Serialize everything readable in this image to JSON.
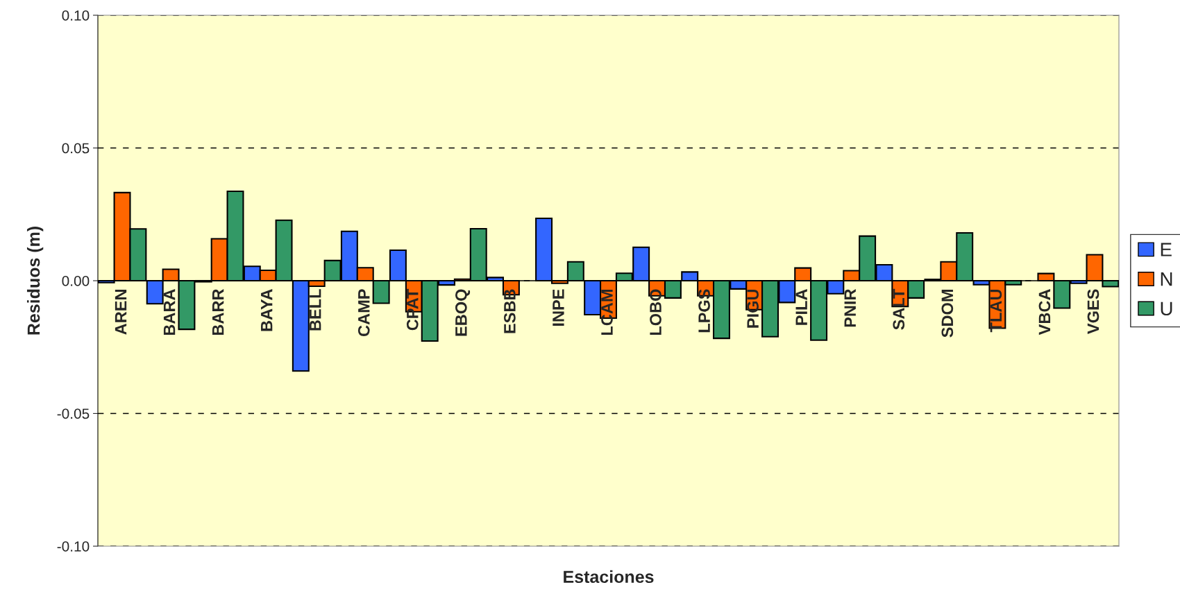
{
  "chart_data": {
    "type": "bar",
    "xlabel": "Estaciones",
    "ylabel": "Residuos (m)",
    "categories": [
      "AREN",
      "BARA",
      "BARR",
      "BAYA",
      "BELL",
      "CAMP",
      "CPAT",
      "EBOQ",
      "ESBB",
      "INPE",
      "LCAM",
      "LOBO",
      "LPGS",
      "PIGU",
      "PILA",
      "PNIR",
      "SALT",
      "SDOM",
      "TLAU",
      "VBCA",
      "VGES"
    ],
    "series": [
      {
        "name": "E",
        "color": "#3366ff",
        "values": [
          -0.0007,
          -0.0087,
          -0.0004,
          0.0054,
          -0.034,
          0.0186,
          0.0115,
          -0.0016,
          0.0012,
          0.0235,
          -0.0128,
          0.0126,
          0.0033,
          -0.0031,
          -0.0082,
          -0.0049,
          0.006,
          0.0005,
          -0.0015,
          null,
          -0.001
        ]
      },
      {
        "name": "N",
        "color": "#ff6600",
        "values": [
          0.0332,
          0.0043,
          0.0158,
          0.0039,
          -0.0021,
          0.0049,
          -0.0117,
          0.0006,
          -0.0053,
          -0.001,
          -0.0141,
          -0.0057,
          -0.0057,
          -0.0109,
          0.0048,
          0.0038,
          -0.0097,
          0.0071,
          -0.0179,
          0.0027,
          0.0098
        ]
      },
      {
        "name": "U",
        "color": "#339966",
        "values": [
          0.0195,
          -0.0183,
          0.0337,
          0.0228,
          0.0076,
          -0.0085,
          -0.0227,
          0.0196,
          null,
          0.0071,
          0.0028,
          -0.0065,
          -0.0217,
          -0.0211,
          -0.0224,
          0.0168,
          -0.0065,
          0.018,
          -0.0015,
          -0.0103,
          -0.0022
        ]
      }
    ],
    "ylim": [
      -0.1,
      0.1
    ],
    "yticks": [
      {
        "value": -0.1,
        "label": "-0.10"
      },
      {
        "value": -0.05,
        "label": "-0.05"
      },
      {
        "value": 0,
        "label": "0.00"
      },
      {
        "value": 0.05,
        "label": "0.05"
      },
      {
        "value": 0.1,
        "label": "0.10"
      }
    ],
    "grid": "y",
    "line_style": "dashed",
    "legend": "right"
  }
}
